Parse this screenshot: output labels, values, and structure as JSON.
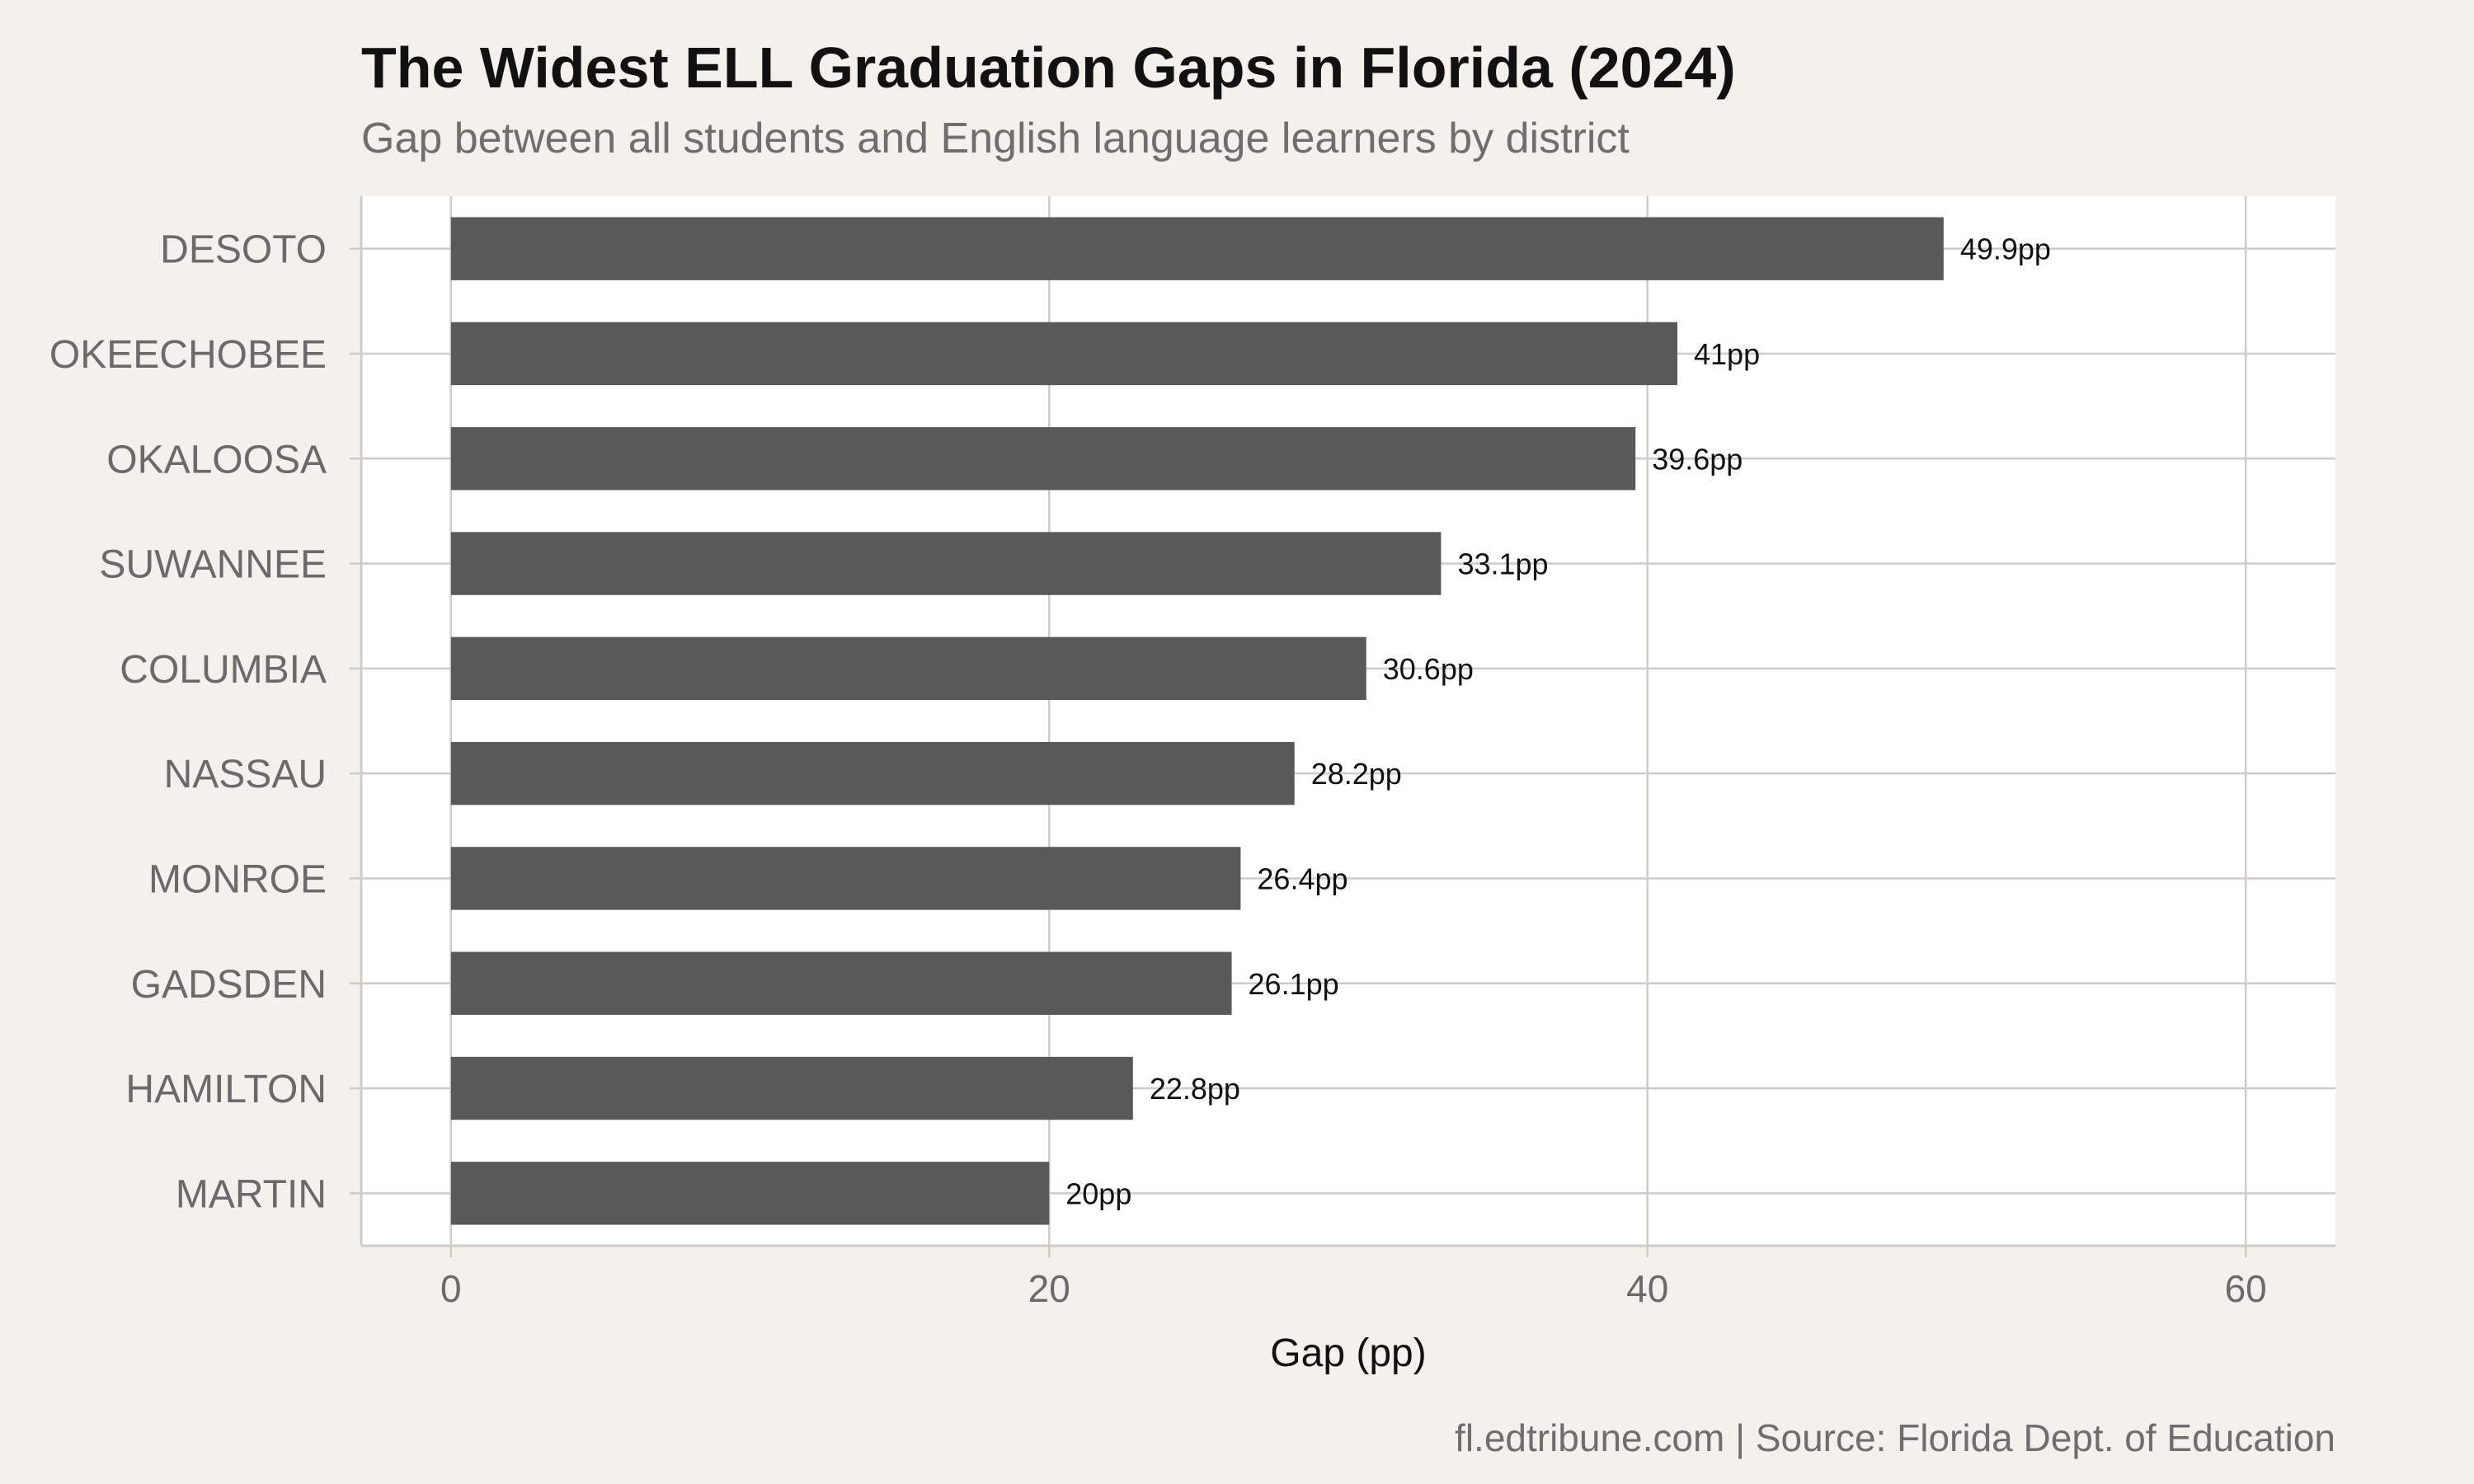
{
  "chart_data": {
    "type": "bar",
    "orientation": "horizontal",
    "title": "The Widest ELL Graduation Gaps in Florida (2024)",
    "subtitle": "Gap between all students and English language learners by district",
    "xlabel": "Gap (pp)",
    "ylabel": "",
    "categories": [
      "DESOTO",
      "OKEECHOBEE",
      "OKALOOSA",
      "SUWANNEE",
      "COLUMBIA",
      "NASSAU",
      "MONROE",
      "GADSDEN",
      "HAMILTON",
      "MARTIN"
    ],
    "values": [
      49.9,
      41,
      39.6,
      33.1,
      30.6,
      28.2,
      26.4,
      26.1,
      22.8,
      20
    ],
    "value_labels": [
      "49.9pp",
      "41pp",
      "39.6pp",
      "33.1pp",
      "30.6pp",
      "28.2pp",
      "26.4pp",
      "26.1pp",
      "22.8pp",
      "20pp"
    ],
    "xlim": [
      -3,
      63
    ],
    "x_ticks": [
      0,
      20,
      40,
      60
    ],
    "x_tick_labels": [
      "0",
      "20",
      "40",
      "60"
    ],
    "grid": true,
    "legend": "none",
    "caption": "fl.edtribune.com | Source: Florida Dept. of Education",
    "colors": {
      "bar": "#595959",
      "panel": "#ffffff",
      "background": "#f4f1ec",
      "grid": "#cfccc6"
    }
  }
}
